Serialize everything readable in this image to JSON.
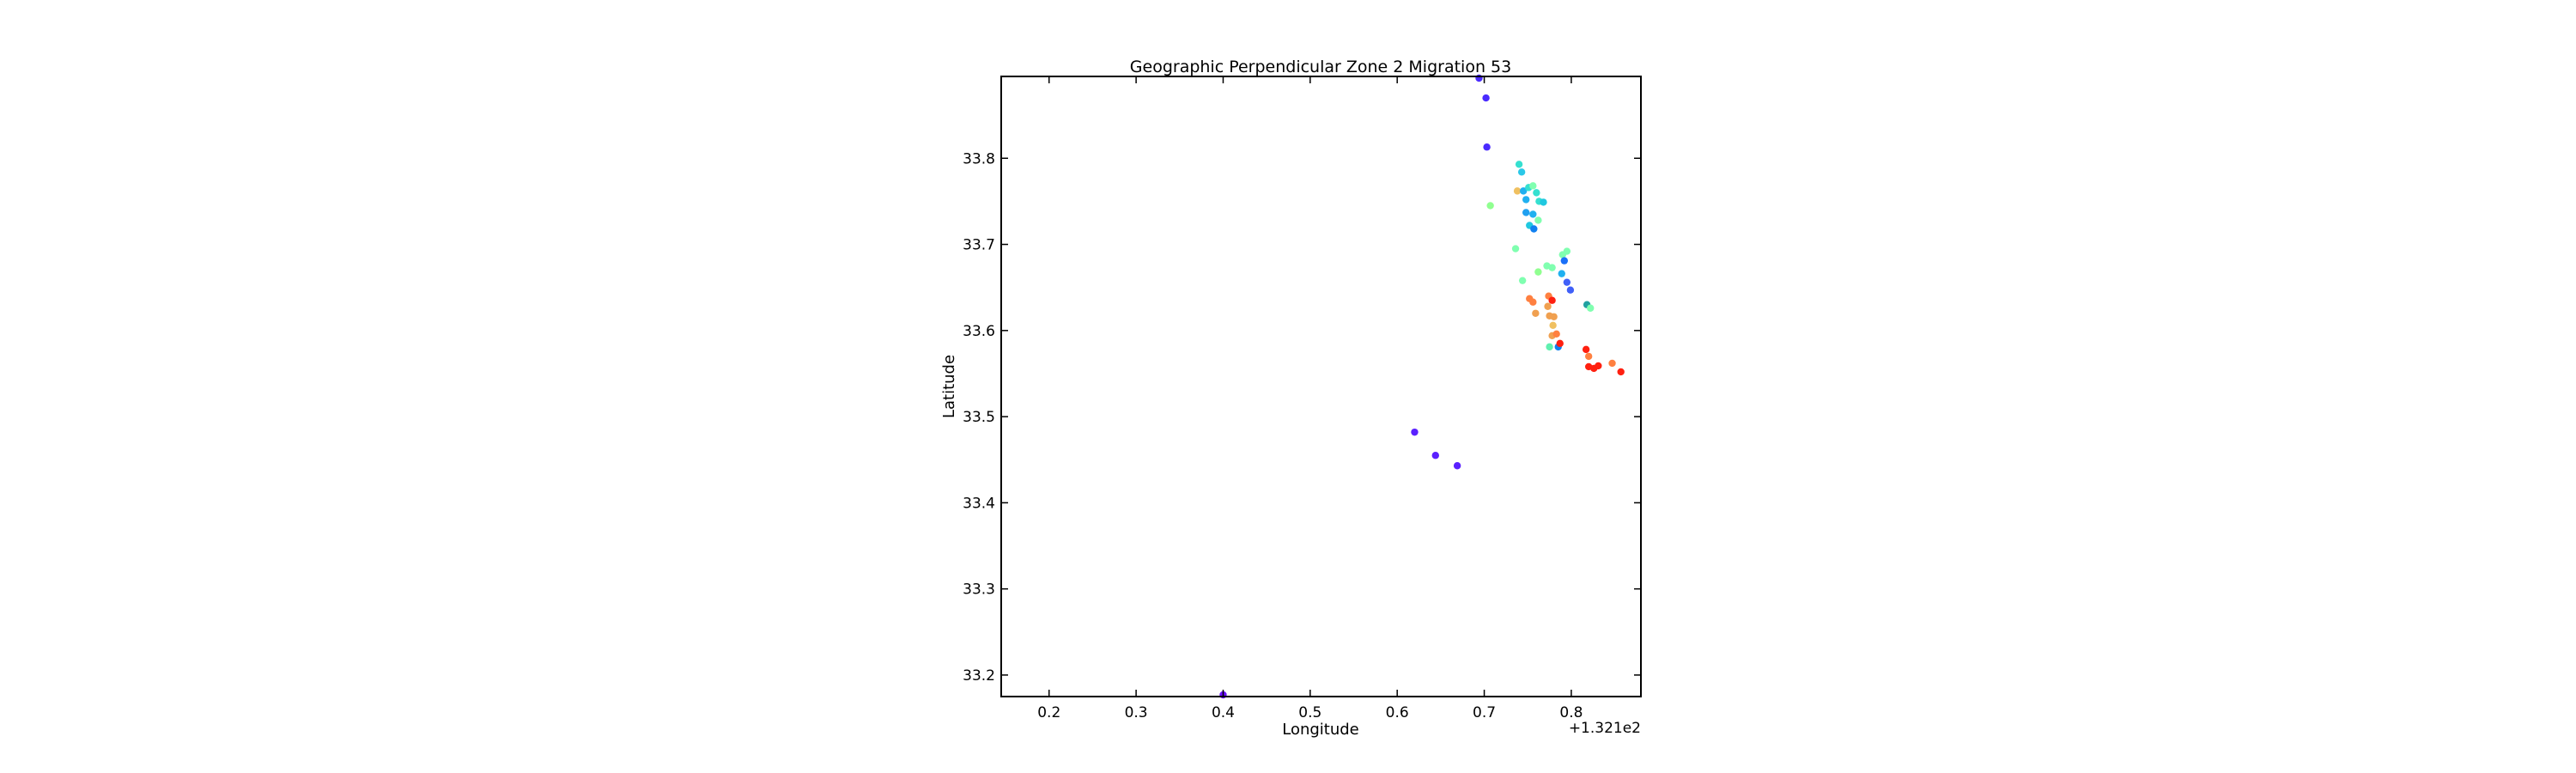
{
  "chart_data": {
    "type": "scatter",
    "title": "Geographic Perpendicular Zone 2 Migration 53",
    "xlabel": "Longitude",
    "ylabel": "Latitude",
    "x_offset_label": "+1.321e2",
    "xlim": [
      0.145,
      0.88
    ],
    "ylim": [
      33.175,
      33.895
    ],
    "xticks": [
      0.2,
      0.3,
      0.4,
      0.5,
      0.6,
      0.7,
      0.8
    ],
    "xtick_labels": [
      "0.2",
      "0.3",
      "0.4",
      "0.5",
      "0.6",
      "0.7",
      "0.8"
    ],
    "yticks": [
      33.2,
      33.3,
      33.4,
      33.5,
      33.6,
      33.7,
      33.8
    ],
    "ytick_labels": [
      "33.2",
      "33.3",
      "33.4",
      "33.5",
      "33.6",
      "33.7",
      "33.8"
    ],
    "grid": false,
    "colormap": "rainbow",
    "points": [
      {
        "x": 0.694,
        "y": 33.893,
        "color": "#4a2bff"
      },
      {
        "x": 0.702,
        "y": 33.87,
        "color": "#4a2bff"
      },
      {
        "x": 0.703,
        "y": 33.813,
        "color": "#4a2bff"
      },
      {
        "x": 0.74,
        "y": 33.793,
        "color": "#35e0d0"
      },
      {
        "x": 0.743,
        "y": 33.784,
        "color": "#2ac8e8"
      },
      {
        "x": 0.738,
        "y": 33.762,
        "color": "#f0c060"
      },
      {
        "x": 0.745,
        "y": 33.762,
        "color": "#20b0f0"
      },
      {
        "x": 0.751,
        "y": 33.766,
        "color": "#35e0d0"
      },
      {
        "x": 0.756,
        "y": 33.768,
        "color": "#80ffb0"
      },
      {
        "x": 0.76,
        "y": 33.76,
        "color": "#35e0d0"
      },
      {
        "x": 0.763,
        "y": 33.75,
        "color": "#35e0d0"
      },
      {
        "x": 0.768,
        "y": 33.749,
        "color": "#20c8e0"
      },
      {
        "x": 0.748,
        "y": 33.752,
        "color": "#20b0f0"
      },
      {
        "x": 0.707,
        "y": 33.745,
        "color": "#90ff90"
      },
      {
        "x": 0.748,
        "y": 33.737,
        "color": "#20a0f0"
      },
      {
        "x": 0.756,
        "y": 33.735,
        "color": "#20b0f0"
      },
      {
        "x": 0.762,
        "y": 33.728,
        "color": "#80ffb0"
      },
      {
        "x": 0.752,
        "y": 33.722,
        "color": "#20c8e0"
      },
      {
        "x": 0.757,
        "y": 33.718,
        "color": "#1080f0"
      },
      {
        "x": 0.736,
        "y": 33.695,
        "color": "#80ffb0"
      },
      {
        "x": 0.795,
        "y": 33.692,
        "color": "#80ffb0"
      },
      {
        "x": 0.79,
        "y": 33.688,
        "color": "#80ffb0"
      },
      {
        "x": 0.792,
        "y": 33.681,
        "color": "#1a70f8"
      },
      {
        "x": 0.772,
        "y": 33.675,
        "color": "#80ffb0"
      },
      {
        "x": 0.778,
        "y": 33.673,
        "color": "#80ffb0"
      },
      {
        "x": 0.762,
        "y": 33.668,
        "color": "#90ff90"
      },
      {
        "x": 0.789,
        "y": 33.666,
        "color": "#20b0f0"
      },
      {
        "x": 0.744,
        "y": 33.658,
        "color": "#80ffb0"
      },
      {
        "x": 0.795,
        "y": 33.656,
        "color": "#4060f8"
      },
      {
        "x": 0.799,
        "y": 33.647,
        "color": "#4060f8"
      },
      {
        "x": 0.774,
        "y": 33.64,
        "color": "#ff8040"
      },
      {
        "x": 0.778,
        "y": 33.635,
        "color": "#ff2010"
      },
      {
        "x": 0.752,
        "y": 33.637,
        "color": "#ff8040"
      },
      {
        "x": 0.756,
        "y": 33.633,
        "color": "#ff8040"
      },
      {
        "x": 0.773,
        "y": 33.628,
        "color": "#f0a050"
      },
      {
        "x": 0.818,
        "y": 33.63,
        "color": "#20a0a0"
      },
      {
        "x": 0.822,
        "y": 33.626,
        "color": "#80ffb0"
      },
      {
        "x": 0.759,
        "y": 33.62,
        "color": "#f0a050"
      },
      {
        "x": 0.775,
        "y": 33.617,
        "color": "#f0a050"
      },
      {
        "x": 0.78,
        "y": 33.616,
        "color": "#f0a050"
      },
      {
        "x": 0.779,
        "y": 33.606,
        "color": "#f0c060"
      },
      {
        "x": 0.778,
        "y": 33.594,
        "color": "#f0a050"
      },
      {
        "x": 0.783,
        "y": 33.596,
        "color": "#ff8040"
      },
      {
        "x": 0.775,
        "y": 33.581,
        "color": "#60f0b0"
      },
      {
        "x": 0.785,
        "y": 33.581,
        "color": "#1080f0"
      },
      {
        "x": 0.787,
        "y": 33.585,
        "color": "#ff2010"
      },
      {
        "x": 0.817,
        "y": 33.578,
        "color": "#ff2010"
      },
      {
        "x": 0.82,
        "y": 33.57,
        "color": "#ff8040"
      },
      {
        "x": 0.847,
        "y": 33.562,
        "color": "#ff8040"
      },
      {
        "x": 0.82,
        "y": 33.558,
        "color": "#ff2010"
      },
      {
        "x": 0.826,
        "y": 33.556,
        "color": "#ff2010"
      },
      {
        "x": 0.831,
        "y": 33.559,
        "color": "#ff2010"
      },
      {
        "x": 0.857,
        "y": 33.552,
        "color": "#ff2010"
      },
      {
        "x": 0.62,
        "y": 33.482,
        "color": "#5a20ff"
      },
      {
        "x": 0.644,
        "y": 33.455,
        "color": "#5a20ff"
      },
      {
        "x": 0.669,
        "y": 33.443,
        "color": "#5a20ff"
      },
      {
        "x": 0.4,
        "y": 33.177,
        "color": "#6a10ff"
      }
    ]
  }
}
